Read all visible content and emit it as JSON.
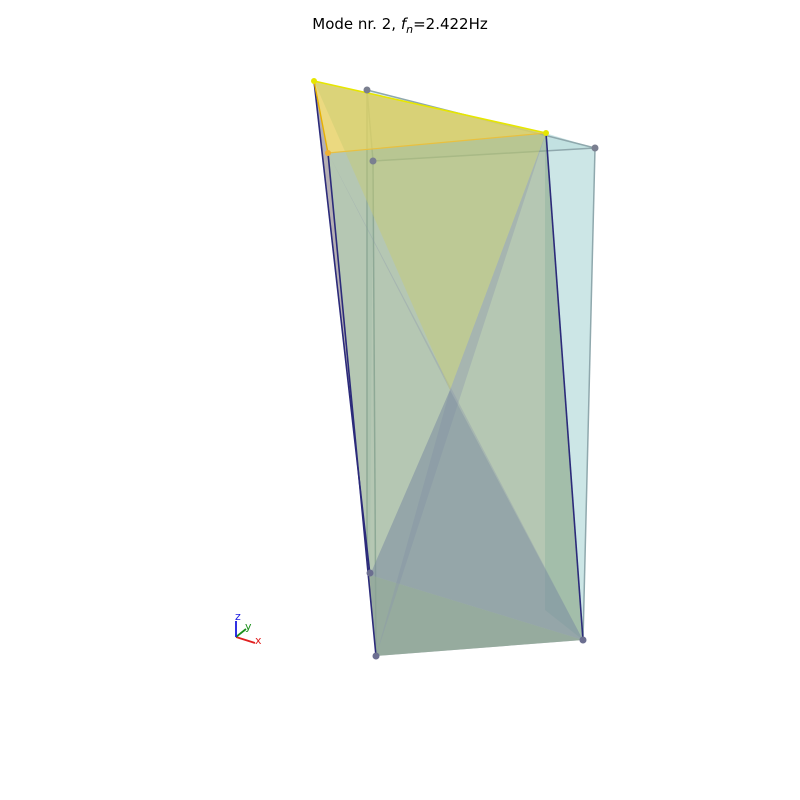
{
  "title": {
    "prefix": "Mode nr. 2, ",
    "symbol": "f",
    "subscript": "n",
    "value": "=2.422Hz"
  },
  "triad": {
    "x_label": "x",
    "y_label": "y",
    "z_label": "z"
  },
  "colors": {
    "undeformed_face": "#b0d8d8",
    "undeformed_edge": "#8fa8ad",
    "node": "#6b6e90",
    "deformed_edge": "#2b2a7a",
    "highlight_edge": "#e6e600",
    "face_top": "#e6d060",
    "face_left": "#a49ca0",
    "face_mid": "#8ea98a",
    "face_bottom": "#8a94ad",
    "axis_x": "#e02020",
    "axis_y": "#1a8f1a",
    "axis_z": "#1a1ae0"
  }
}
